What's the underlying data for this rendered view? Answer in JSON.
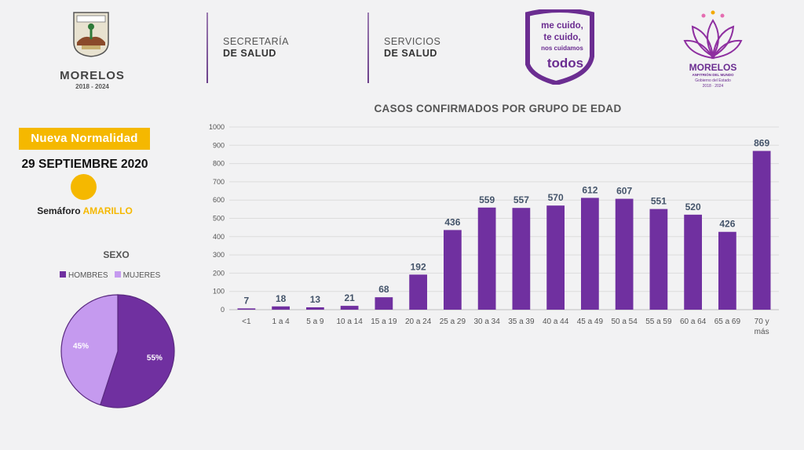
{
  "header": {
    "state_logo": {
      "name": "MORELOS",
      "years": "2018 - 2024"
    },
    "dept1": {
      "line1": "SECRETARÍA",
      "line2": "DE SALUD"
    },
    "dept2": {
      "line1": "SERVICIOS",
      "line2": "DE SALUD"
    },
    "campaign": {
      "line1": "me cuido,",
      "line2": "te cuido,",
      "line3": "nos cuidamos",
      "line4": "todos"
    },
    "gov_logo": {
      "name": "MORELOS",
      "tagline": "ANFITRIÓN DEL MUNDO",
      "line1": "Gobierno del Estado",
      "line2": "2018 · 2024"
    }
  },
  "left_panel": {
    "phase": "Nueva Normalidad",
    "date": "29 SEPTIEMBRE 2020",
    "semaforo_prefix": "Semáforo ",
    "semaforo_color": "AMARILLO"
  },
  "colors": {
    "purple_dark": "#7030a0",
    "purple_light": "#c59aef",
    "yellow": "#f5b800"
  },
  "chart_data": [
    {
      "type": "bar",
      "title": "CASOS CONFIRMADOS POR GRUPO DE EDAD",
      "categories": [
        "<1",
        "1 a 4",
        "5 a 9",
        "10 a 14",
        "15 a 19",
        "20 a 24",
        "25 a 29",
        "30 a 34",
        "35 a 39",
        "40 a 44",
        "45 a 49",
        "50 a 54",
        "55 a 59",
        "60 a 64",
        "65 a 69",
        "70 y más"
      ],
      "values": [
        7,
        18,
        13,
        21,
        68,
        192,
        436,
        559,
        557,
        570,
        612,
        607,
        551,
        520,
        426,
        869
      ],
      "ylim": [
        0,
        1000
      ],
      "yticks": [
        0,
        100,
        200,
        300,
        400,
        500,
        600,
        700,
        800,
        900,
        1000
      ],
      "grid": true,
      "color": "#7030a0",
      "data_labels": true
    },
    {
      "type": "pie",
      "title": "SEXO",
      "labels": [
        "HOMBRES",
        "MUJERES"
      ],
      "values": [
        55,
        45
      ],
      "value_labels": [
        "55%",
        "45%"
      ],
      "colors": [
        "#7030a0",
        "#c59aef"
      ],
      "legend": "top"
    }
  ]
}
